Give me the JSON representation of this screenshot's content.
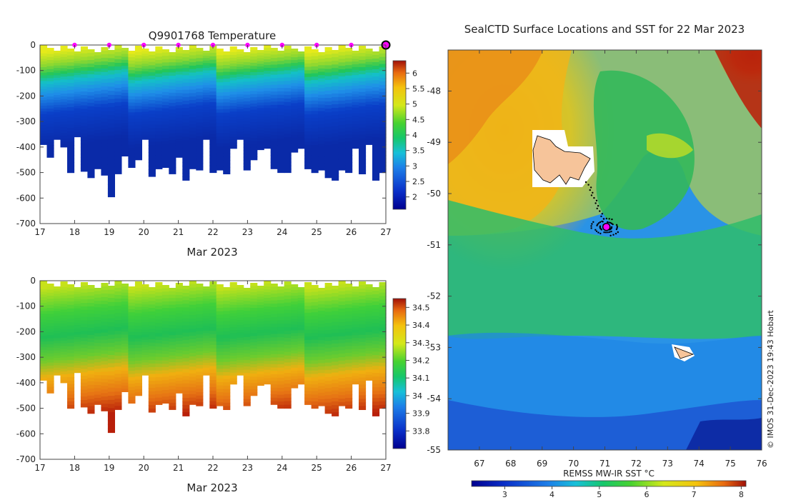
{
  "chart_data": [
    {
      "type": "heatmap",
      "title": "Q9901768  Temperature",
      "xlabel": "Mar 2023",
      "ylabel": "",
      "xlim": [
        17,
        27
      ],
      "ylim": [
        -700,
        0
      ],
      "x_ticks": [
        "17",
        "18",
        "19",
        "20",
        "21",
        "22",
        "23",
        "24",
        "25",
        "26",
        "27"
      ],
      "y_ticks": [
        "0",
        "-100",
        "-200",
        "-300",
        "-400",
        "-500",
        "-600",
        "-700"
      ],
      "colorbar_ticks": [
        "2",
        "2.5",
        "3",
        "3.5",
        "4",
        "4.5",
        "5",
        "5.5",
        "6"
      ],
      "colorbar_range": [
        1.6,
        6.4
      ],
      "daily_markers": [
        18,
        19,
        20,
        21,
        22,
        23,
        24,
        25,
        26
      ],
      "current_marker": 27,
      "marker_color": "#ff00ff",
      "profile_depths": [
        -390,
        -440,
        -370,
        -400,
        -500,
        -360,
        -495,
        -520,
        -485,
        -510,
        -595,
        -505,
        -435,
        -480,
        -450,
        -370,
        -515,
        -485,
        -480,
        -505,
        -440,
        -530,
        -485,
        -490,
        -370,
        -500,
        -490,
        -505,
        -405,
        -370,
        -490,
        -450,
        -410,
        -405,
        -485,
        -500,
        -500,
        -420,
        -405,
        -485,
        -500,
        -490,
        -520,
        -530,
        -490,
        -500,
        -405,
        -505,
        -390,
        -530,
        -500
      ]
    },
    {
      "type": "heatmap",
      "title": "",
      "xlabel": "Mar 2023",
      "ylabel": "",
      "xlim": [
        17,
        27
      ],
      "ylim": [
        -700,
        0
      ],
      "x_ticks": [
        "17",
        "18",
        "19",
        "20",
        "21",
        "22",
        "23",
        "24",
        "25",
        "26",
        "27"
      ],
      "y_ticks": [
        "0",
        "-100",
        "-200",
        "-300",
        "-400",
        "-500",
        "-600",
        "-700"
      ],
      "colorbar_ticks": [
        "33.8",
        "33.9",
        "34",
        "34.1",
        "34.2",
        "34.3",
        "34.4",
        "34.5"
      ],
      "colorbar_range": [
        33.7,
        34.55
      ]
    },
    {
      "type": "heatmap",
      "title": "SealCTD Surface Locations and SST for 22 Mar 2023",
      "xlabel": "REMSS MW-IR SST °C",
      "ylabel": "",
      "xlim": [
        66,
        76
      ],
      "ylim": [
        -55,
        -47.2
      ],
      "x_ticks": [
        "67",
        "68",
        "69",
        "70",
        "71",
        "72",
        "73",
        "74",
        "75",
        "76"
      ],
      "y_ticks": [
        "-48",
        "-49",
        "-50",
        "-51",
        "-52",
        "-53",
        "-54",
        "-55"
      ],
      "colorbar_ticks": [
        "3",
        "4",
        "5",
        "6",
        "7",
        "8"
      ],
      "colorbar_range": [
        2.3,
        8.1
      ],
      "seal_position": [
        71.05,
        -50.65
      ],
      "credit": "© IMOS 31-Dec-2023 19:43 Hobart"
    }
  ]
}
